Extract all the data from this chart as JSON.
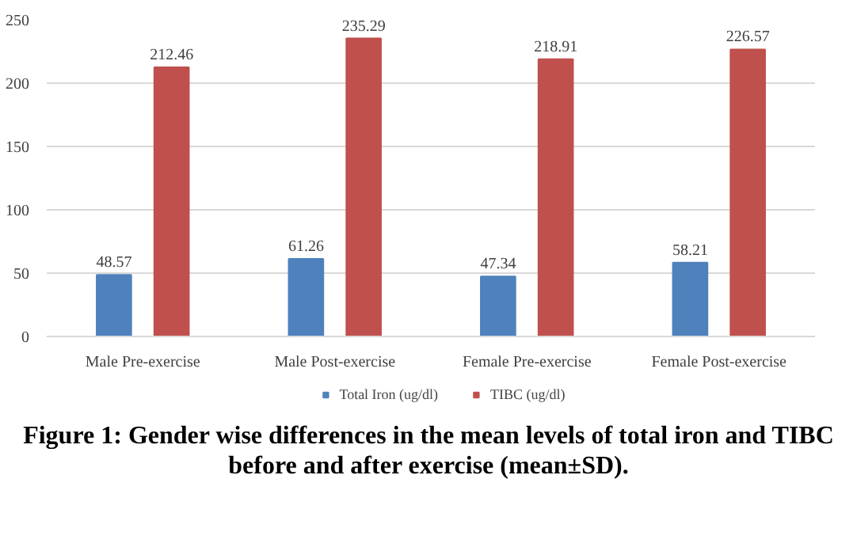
{
  "chart_data": {
    "type": "bar",
    "title": "Figure 1: Gender wise differences in the mean levels of total iron and TIBC before and after exercise (mean±SD).",
    "categories": [
      "Male Pre-exercise",
      "Male Post-exercise",
      "Female Pre-exercise",
      "Female Post-exercise"
    ],
    "series": [
      {
        "name": "Total Iron (ug/dl)",
        "color": "#4f81bd",
        "values": [
          48.57,
          61.26,
          47.34,
          58.21
        ]
      },
      {
        "name": "TIBC (ug/dl)",
        "color": "#c0504d",
        "values": [
          212.46,
          235.29,
          218.91,
          226.57
        ]
      }
    ],
    "ylim": [
      0,
      250
    ],
    "yticks": [
      0,
      50,
      100,
      150,
      200,
      250
    ],
    "grid": "y",
    "legend": "bottom",
    "data_labels": true
  }
}
